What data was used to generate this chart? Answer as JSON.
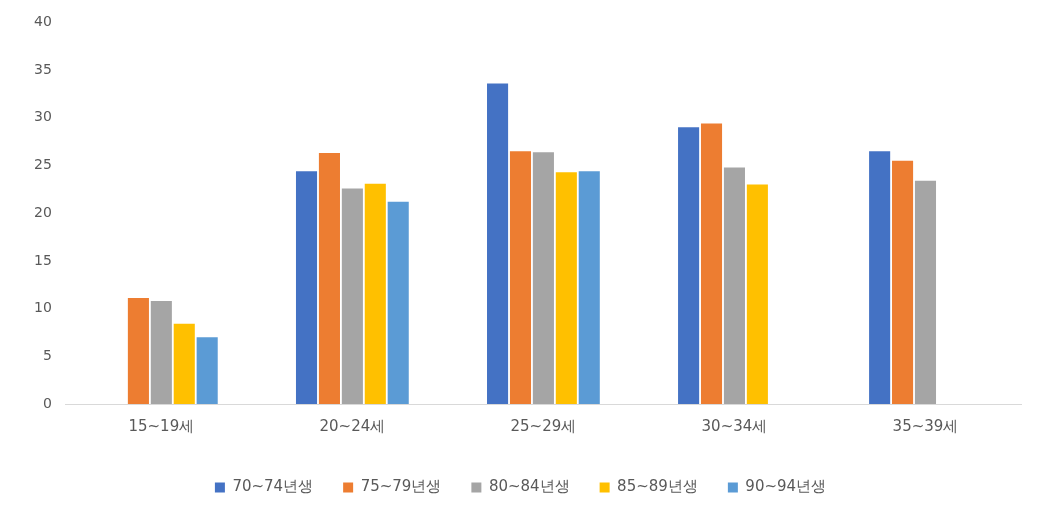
{
  "chart_data": {
    "type": "bar",
    "categories": [
      "15~19세",
      "20~24세",
      "25~29세",
      "30~34세",
      "35~39세"
    ],
    "series": [
      {
        "name": "70~74년생",
        "color": "#4472c4",
        "values": [
          null,
          24.4,
          33.6,
          29.0,
          26.5
        ]
      },
      {
        "name": "75~79년생",
        "color": "#ed7d31",
        "values": [
          11.1,
          26.3,
          26.5,
          29.4,
          25.5
        ]
      },
      {
        "name": "80~84년생",
        "color": "#a5a5a5",
        "values": [
          10.8,
          22.6,
          26.4,
          24.8,
          23.4
        ]
      },
      {
        "name": "85~89년생",
        "color": "#ffc000",
        "values": [
          8.4,
          23.1,
          24.3,
          23.0,
          null
        ]
      },
      {
        "name": "90~94년생",
        "color": "#5b9bd5",
        "values": [
          7.0,
          21.2,
          24.4,
          null,
          null
        ]
      }
    ],
    "ylim": [
      0,
      40
    ],
    "yticks": [
      0,
      5,
      10,
      15,
      20,
      25,
      30,
      35,
      40
    ],
    "grid": false,
    "legend": "bottom"
  }
}
